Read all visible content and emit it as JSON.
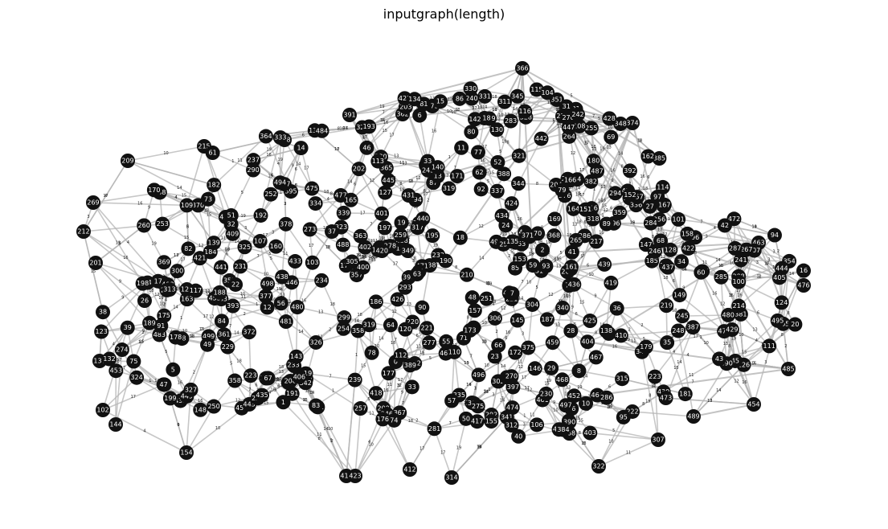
{
  "figure": {
    "title": "inputgraph(length)"
  },
  "style": {
    "node_color": "#111111",
    "node_label_color": "#ffffff",
    "edge_color": "#b4b4b4",
    "background": "#ffffff"
  },
  "graph": {
    "node_count": 500,
    "visible_node_labels": [
      "366",
      "351",
      "374",
      "391",
      "362",
      "373",
      "359",
      "385",
      "388",
      "358",
      "369",
      "396",
      "378",
      "379",
      "370",
      "357",
      "354",
      "392",
      "367",
      "298",
      "289",
      "255",
      "283",
      "386",
      "382",
      "363",
      "364",
      "395",
      "365",
      "356",
      "360",
      "375",
      "398",
      "376",
      "352",
      "381",
      "368",
      "35",
      "65",
      "16",
      "383",
      "76",
      "66",
      "33",
      "463",
      "476",
      "486",
      "464",
      "474",
      "498",
      "459",
      "493",
      "466",
      "485",
      "454",
      "489",
      "326",
      "323",
      "307",
      "322",
      "335",
      "347",
      "338",
      "407",
      "343",
      "318",
      "314",
      "412",
      "415",
      "423",
      "446",
      "419",
      "404",
      "333",
      "300",
      "303",
      "425",
      "434",
      "413",
      "424",
      "414",
      "197",
      "185",
      "168",
      "150",
      "145",
      "159",
      "126",
      "123",
      "191",
      "154",
      "114",
      "131",
      "179",
      "180",
      "181",
      "144",
      "192",
      "102",
      "106",
      "105",
      "137",
      "130",
      "128",
      "187",
      "133",
      "416",
      "147",
      "209",
      "237",
      "268",
      "269",
      "277",
      "210",
      "212",
      "201",
      "225",
      "219",
      "286",
      "264",
      "256",
      "206",
      "241",
      "215",
      "203",
      "207",
      "223",
      "202",
      "200",
      "204",
      "211",
      "213",
      "227",
      "238",
      "281",
      "274",
      "265",
      "229",
      "248",
      "231",
      "223",
      "273",
      "278",
      "254",
      "232",
      "221",
      "240",
      "292",
      "222",
      "174",
      "125",
      "103",
      "437",
      "418",
      "444",
      "402",
      "149",
      "172",
      "433",
      "432",
      "449",
      "309",
      "325",
      "409",
      "439",
      "410",
      "403",
      "336",
      "348",
      "344",
      "427",
      "405",
      "430",
      "332",
      "311",
      "329",
      "305",
      "302",
      "330",
      "345",
      "339",
      "341",
      "346",
      "324",
      "349",
      "342",
      "321",
      "310",
      "331",
      "334",
      "455",
      "473",
      "461",
      "327",
      "483",
      "491",
      "480",
      "456",
      "497",
      "457",
      "479",
      "472",
      "487",
      "481",
      "492",
      "458",
      "494",
      "484",
      "452",
      "460",
      "499",
      "471",
      "468",
      "478",
      "477",
      "465",
      "467",
      "51",
      "70",
      "74",
      "45",
      "11",
      "20",
      "88",
      "98",
      "67",
      "56",
      "53",
      "44",
      "19",
      "22",
      "10",
      "91",
      "27",
      "37",
      "488",
      "490",
      "496",
      "42",
      "97",
      "89",
      "79",
      "36",
      "93",
      "68",
      "43",
      "50",
      "8",
      "15",
      "62",
      "4",
      "1",
      "58",
      "46",
      "78",
      "87",
      "55",
      "77",
      "12",
      "85",
      "475",
      "480",
      "40",
      "48",
      "17",
      "21",
      "9",
      "49",
      "90",
      "57",
      "69",
      "23",
      "28",
      "95",
      "86",
      "80",
      "30",
      "26",
      "0",
      "60",
      "54",
      "75",
      "73",
      "47",
      "33",
      "64",
      "96",
      "94",
      "92",
      "82",
      "81",
      "390",
      "377",
      "399",
      "393",
      "358",
      "361",
      "394",
      "387",
      "372",
      "389",
      "397",
      "25",
      "14",
      "5",
      "384",
      "371",
      "61",
      "408",
      "401",
      "411",
      "340",
      "438",
      "443",
      "429",
      "445",
      "312",
      "315",
      "319",
      "328",
      "337",
      "306",
      "317",
      "304",
      "320",
      "319",
      "453",
      "495",
      "3",
      "24",
      "63",
      "84",
      "71",
      "59",
      "99",
      "39",
      "41",
      "2",
      "31",
      "32",
      "34",
      "38",
      "13",
      "83",
      "72",
      "18",
      "29",
      "7",
      "6",
      "52",
      "239",
      "251",
      "234",
      "245",
      "246",
      "270",
      "252",
      "253",
      "288",
      "230",
      "267",
      "247",
      "214",
      "217",
      "250",
      "220",
      "236",
      "235",
      "257",
      "259",
      "260",
      "294",
      "276",
      "275",
      "208",
      "242",
      "243",
      "290",
      "299",
      "287",
      "233",
      "293",
      "285",
      "284",
      "112",
      "143",
      "153",
      "118",
      "113",
      "120",
      "124",
      "165",
      "195",
      "183",
      "184",
      "148",
      "155",
      "164",
      "170",
      "198",
      "109",
      "100",
      "101",
      "142",
      "177",
      "178",
      "115",
      "107",
      "111",
      "152",
      "157",
      "182",
      "190",
      "108",
      "163",
      "173",
      "167",
      "171",
      "160",
      "116",
      "138",
      "139",
      "110",
      "119",
      "146",
      "140",
      "134",
      "166",
      "188",
      "158",
      "162",
      "117",
      "132",
      "104",
      "169",
      "436",
      "420",
      "426",
      "440",
      "400",
      "441",
      "442",
      "435",
      "406",
      "417",
      "422",
      "428",
      "316",
      "313",
      "421",
      "431",
      "447",
      "151",
      "135",
      "189",
      "186",
      "193",
      "127",
      "161",
      "199",
      "176",
      "175"
    ]
  }
}
